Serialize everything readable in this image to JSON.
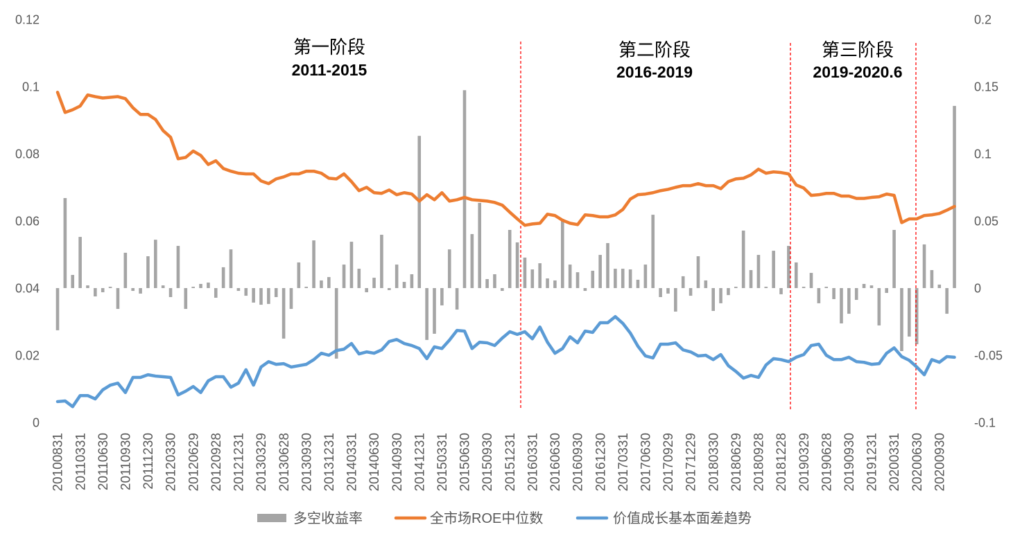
{
  "chart_data": {
    "type": "combo",
    "legend": "bottom",
    "grid": false,
    "x_ticks": [
      "20100831",
      "20110331",
      "20110630",
      "20110930",
      "20111230",
      "20120330",
      "20120629",
      "20120928",
      "20121231",
      "20130329",
      "20130628",
      "20130930",
      "20131231",
      "20140331",
      "20140630",
      "20140930",
      "20141231",
      "20150331",
      "20150630",
      "20150930",
      "20151231",
      "20160331",
      "20160630",
      "20160930",
      "20161230",
      "20170331",
      "20170630",
      "20170929",
      "20171229",
      "20180330",
      "20180629",
      "20180928",
      "20181228",
      "20190329",
      "20190628",
      "20190930",
      "20191231",
      "20200331",
      "20200630",
      "20200930"
    ],
    "left_axis": {
      "ylim": [
        0,
        0.12
      ],
      "ticks": [
        0.12,
        0.1,
        0.08,
        0.06,
        0.04,
        0.02,
        0
      ]
    },
    "right_axis": {
      "ylim": [
        -0.1,
        0.2
      ],
      "ticks": [
        0.2,
        0.15,
        0.1,
        0.05,
        0,
        -0.05,
        -0.1
      ]
    },
    "series": [
      {
        "name": "多空收益率",
        "type": "bar",
        "axis": "right",
        "color": "#A5A5A5",
        "values": [
          -0.0314,
          0.067,
          0.0098,
          0.0381,
          0.002,
          -0.0062,
          -0.0031,
          0.001,
          -0.0155,
          0.0263,
          -0.0021,
          -0.0041,
          0.0237,
          0.036,
          0.002,
          -0.0067,
          0.0314,
          -0.0155,
          0.001,
          0.0031,
          0.0041,
          -0.0072,
          0.0155,
          0.0288,
          -0.0021,
          -0.0057,
          -0.0108,
          -0.0124,
          -0.0118,
          -0.0067,
          -0.0376,
          -0.0155,
          0.0191,
          0.001,
          0.0355,
          0.0057,
          0.0082,
          -0.0525,
          0.0175,
          0.0345,
          0.0144,
          -0.0031,
          0.0077,
          0.0397,
          -0.0015,
          0.0175,
          0.0046,
          0.0103,
          0.1133,
          -0.0386,
          -0.034,
          -0.0129,
          0.0288,
          -0.016,
          0.1473,
          0.0402,
          0.0634,
          0.0067,
          0.0103,
          -0.0021,
          0.0433,
          0.034,
          0.0227,
          0.0139,
          0.0185,
          0.0072,
          0.0057,
          0.0515,
          0.0175,
          0.0118,
          -0.0021,
          0.0129,
          0.0247,
          0.0335,
          0.0144,
          0.0144,
          0.0139,
          0.0062,
          0.0175,
          0.0546,
          -0.0067,
          -0.0041,
          -0.0175,
          0.0088,
          -0.0057,
          0.0237,
          0.0057,
          -0.017,
          -0.0113,
          -0.0052,
          0.001,
          0.0428,
          0.0134,
          0.0247,
          0.001,
          0.0278,
          -0.0046,
          0.0314,
          0.0191,
          0.001,
          0.0113,
          -0.0113,
          0.001,
          -0.0082,
          -0.0263,
          -0.0191,
          -0.0088,
          0.0031,
          0.002,
          -0.0278,
          -0.0036,
          0.0433,
          -0.0469,
          -0.0361,
          -0.0418,
          0.0325,
          0.0134,
          0.0026,
          -0.0191,
          0.1356
        ]
      },
      {
        "name": "全市场ROE中位数",
        "type": "line",
        "axis": "left",
        "color": "#ED7D31",
        "values": [
          0.0983,
          0.0923,
          0.0931,
          0.0942,
          0.0975,
          0.097,
          0.0966,
          0.0968,
          0.097,
          0.0964,
          0.0937,
          0.0917,
          0.0917,
          0.0902,
          0.0869,
          0.0849,
          0.0785,
          0.0789,
          0.0808,
          0.0795,
          0.0768,
          0.0779,
          0.0756,
          0.0748,
          0.0742,
          0.074,
          0.074,
          0.0719,
          0.0711,
          0.0725,
          0.0731,
          0.074,
          0.074,
          0.0748,
          0.0748,
          0.0742,
          0.0727,
          0.0725,
          0.074,
          0.0717,
          0.069,
          0.07,
          0.0684,
          0.0682,
          0.0692,
          0.0678,
          0.0684,
          0.068,
          0.0659,
          0.0678,
          0.0663,
          0.0684,
          0.0659,
          0.0663,
          0.067,
          0.0663,
          0.0661,
          0.0659,
          0.0655,
          0.0647,
          0.0626,
          0.0606,
          0.0587,
          0.0591,
          0.0593,
          0.062,
          0.0616,
          0.0602,
          0.0593,
          0.0589,
          0.0618,
          0.0616,
          0.0612,
          0.0612,
          0.0618,
          0.0634,
          0.0665,
          0.0678,
          0.068,
          0.0684,
          0.069,
          0.0694,
          0.07,
          0.0705,
          0.0705,
          0.0711,
          0.0705,
          0.0705,
          0.0696,
          0.0717,
          0.0725,
          0.0727,
          0.0737,
          0.0754,
          0.0742,
          0.0746,
          0.0744,
          0.074,
          0.0707,
          0.0698,
          0.0676,
          0.0678,
          0.0682,
          0.0682,
          0.0674,
          0.0674,
          0.0667,
          0.0667,
          0.067,
          0.0672,
          0.068,
          0.0676,
          0.0595,
          0.0606,
          0.0606,
          0.0616,
          0.0618,
          0.0622,
          0.0632,
          0.0643
        ]
      },
      {
        "name": "价值成长基本面差趋势",
        "type": "line",
        "axis": "left",
        "color": "#5B9BD5",
        "values": [
          0.0062,
          0.0064,
          0.0047,
          0.008,
          0.008,
          0.007,
          0.0097,
          0.0111,
          0.0117,
          0.0089,
          0.0134,
          0.0134,
          0.0142,
          0.0138,
          0.0136,
          0.0134,
          0.0082,
          0.0093,
          0.0107,
          0.0089,
          0.0124,
          0.0136,
          0.0136,
          0.0105,
          0.0117,
          0.0157,
          0.0111,
          0.0165,
          0.0181,
          0.0173,
          0.0175,
          0.0165,
          0.0169,
          0.0173,
          0.0187,
          0.0206,
          0.02,
          0.0214,
          0.0218,
          0.0235,
          0.0204,
          0.021,
          0.0206,
          0.0216,
          0.0241,
          0.0247,
          0.0235,
          0.0229,
          0.022,
          0.019,
          0.0225,
          0.022,
          0.0245,
          0.0274,
          0.0272,
          0.022,
          0.0239,
          0.0237,
          0.0229,
          0.0251,
          0.027,
          0.0262,
          0.027,
          0.0249,
          0.0284,
          0.0239,
          0.0206,
          0.022,
          0.0255,
          0.0237,
          0.0272,
          0.0268,
          0.0297,
          0.0297,
          0.0315,
          0.0295,
          0.0266,
          0.0227,
          0.0198,
          0.0192,
          0.0233,
          0.0233,
          0.0237,
          0.0216,
          0.021,
          0.0198,
          0.02,
          0.0187,
          0.0202,
          0.0169,
          0.0152,
          0.0132,
          0.014,
          0.0134,
          0.0171,
          0.019,
          0.0187,
          0.0181,
          0.0194,
          0.0202,
          0.0229,
          0.0233,
          0.02,
          0.0187,
          0.0187,
          0.0194,
          0.0181,
          0.0179,
          0.0173,
          0.0175,
          0.0206,
          0.0222,
          0.0196,
          0.0185,
          0.0165,
          0.0142,
          0.0187,
          0.0179,
          0.0196,
          0.0194
        ]
      }
    ],
    "annotations": [
      {
        "title": "第一阶段",
        "period": "2011-2015"
      },
      {
        "title": "第二阶段",
        "period": "2016-2019"
      },
      {
        "title": "第三阶段",
        "period": "2019-2020.6"
      }
    ],
    "divider_color": "#FF0000"
  }
}
